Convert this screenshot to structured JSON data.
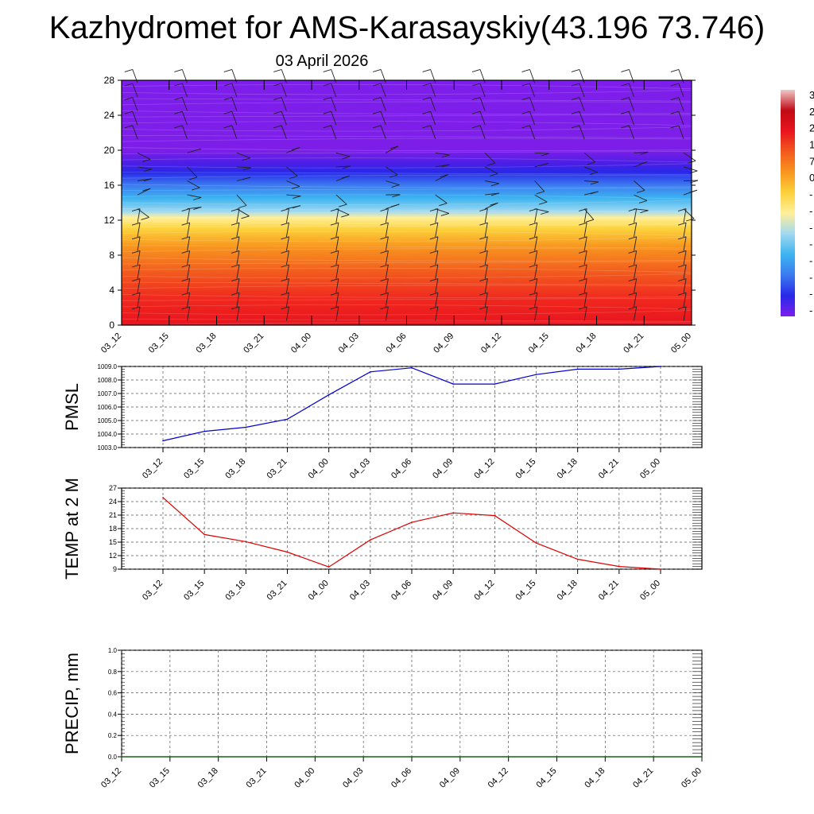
{
  "title": "Kazhydromet for AMS-Karasayskiy(43.196 73.746)",
  "subtitle": "03 April 2026",
  "colors": {
    "pmsl_line": "#0000cc",
    "temp_line": "#dd0000",
    "precip_line": "#006400"
  },
  "chart_data": [
    {
      "type": "heatmap",
      "name": "cross-section",
      "title": "",
      "categories": [
        "03_12",
        "03_15",
        "03_18",
        "03_21",
        "04_00",
        "04_03",
        "04_06",
        "04_09",
        "04_12",
        "04_15",
        "04_18",
        "04_21",
        "05_00"
      ],
      "yticks": [
        0,
        4,
        8,
        12,
        16,
        20,
        24,
        28
      ],
      "ylim": [
        0,
        28
      ],
      "colorbar_labels": [
        "3",
        "2",
        "2",
        "1",
        "7",
        "0",
        "-",
        "-",
        "-",
        "-",
        "-",
        "-",
        "-",
        "-"
      ],
      "layers": [
        {
          "level": 0,
          "color": "#e8141e"
        },
        {
          "level": 3,
          "color": "#f0281e"
        },
        {
          "level": 6,
          "color": "#f25a1e"
        },
        {
          "level": 9,
          "color": "#f8961e"
        },
        {
          "level": 11,
          "color": "#fcd23c"
        },
        {
          "level": 12.3,
          "color": "#fff09b"
        },
        {
          "level": 13,
          "color": "#a0d8f0"
        },
        {
          "level": 14.5,
          "color": "#3cb4f0"
        },
        {
          "level": 16,
          "color": "#3c7af0"
        },
        {
          "level": 17.5,
          "color": "#2828e8"
        },
        {
          "level": 18.5,
          "color": "#4b1ee6"
        },
        {
          "level": 20,
          "color": "#7d1ee8"
        },
        {
          "level": 28,
          "color": "#7d1eec"
        }
      ]
    },
    {
      "type": "line",
      "name": "pmsl",
      "ylabel": "PMSL",
      "categories": [
        "03_12",
        "03_15",
        "03_18",
        "03_21",
        "04_00",
        "04_03",
        "04_06",
        "04_09",
        "04_12",
        "04_15",
        "04_18",
        "04_21",
        "05_00"
      ],
      "yticks": [
        "1003.0",
        "1004.0",
        "1005.0",
        "1006.0",
        "1007.0",
        "1008.0",
        "1009.0"
      ],
      "ylim": [
        1003,
        1009
      ],
      "values": [
        1003.5,
        1004.2,
        1004.5,
        1005.1,
        1006.9,
        1008.6,
        1008.9,
        1007.7,
        1007.7,
        1008.4,
        1008.8,
        1008.8,
        1009.0
      ]
    },
    {
      "type": "line",
      "name": "temp",
      "ylabel": "TEMP at 2 M",
      "categories": [
        "03_12",
        "03_15",
        "03_18",
        "03_21",
        "04_00",
        "04_03",
        "04_06",
        "04_09",
        "04_12",
        "04_15",
        "04_18",
        "04_21",
        "05_00"
      ],
      "yticks": [
        "9",
        "12",
        "15",
        "18",
        "21",
        "24",
        "27"
      ],
      "ylim": [
        9,
        27
      ],
      "values": [
        24.9,
        16.7,
        15.1,
        12.8,
        9.5,
        15.5,
        19.4,
        21.5,
        20.9,
        14.8,
        11.2,
        9.6,
        9.0
      ]
    },
    {
      "type": "line",
      "name": "precip",
      "ylabel": "PRECIP, mm",
      "categories": [
        "03_12",
        "03_15",
        "03_18",
        "03_21",
        "04_00",
        "04_03",
        "04_06",
        "04_09",
        "04_12",
        "04_15",
        "04_18",
        "04_21",
        "05_00"
      ],
      "yticks": [
        "0.0",
        "0.2",
        "0.4",
        "0.6",
        "0.8",
        "1.0"
      ],
      "ylim": [
        0,
        1
      ],
      "values": [
        0,
        0,
        0,
        0,
        0,
        0,
        0,
        0,
        0,
        0,
        0,
        0,
        0
      ]
    }
  ]
}
